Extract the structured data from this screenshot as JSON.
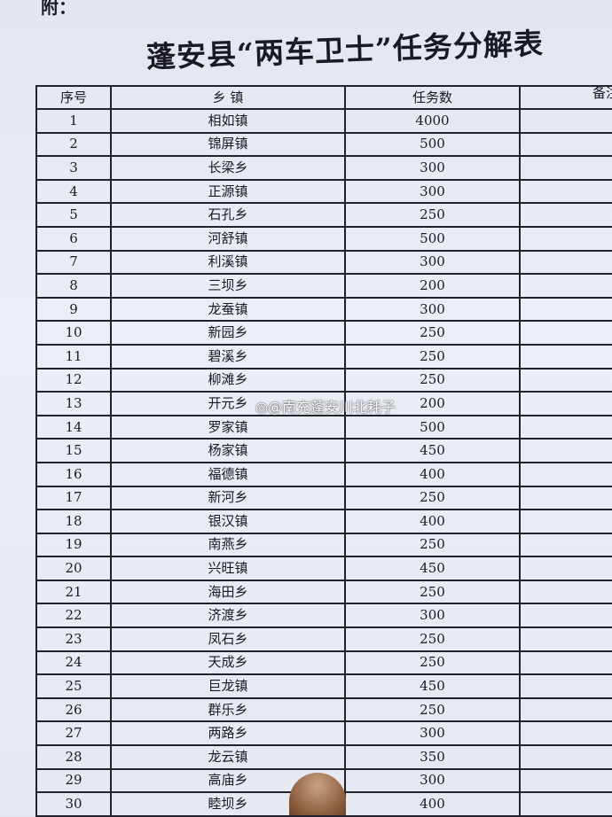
{
  "attachment_label": "附：",
  "title": "蓬安县“两车卫士”任务分解表",
  "headers": {
    "index": "序号",
    "town": "乡 镇",
    "tasks": "任务数",
    "remarks": "备注"
  },
  "rows": [
    {
      "index": "1",
      "town": "相如镇",
      "tasks": "4000"
    },
    {
      "index": "2",
      "town": "锦屏镇",
      "tasks": "500"
    },
    {
      "index": "3",
      "town": "长梁乡",
      "tasks": "300"
    },
    {
      "index": "4",
      "town": "正源镇",
      "tasks": "300"
    },
    {
      "index": "5",
      "town": "石孔乡",
      "tasks": "250"
    },
    {
      "index": "6",
      "town": "河舒镇",
      "tasks": "500"
    },
    {
      "index": "7",
      "town": "利溪镇",
      "tasks": "300"
    },
    {
      "index": "8",
      "town": "三坝乡",
      "tasks": "200"
    },
    {
      "index": "9",
      "town": "龙蚕镇",
      "tasks": "300"
    },
    {
      "index": "10",
      "town": "新园乡",
      "tasks": "250"
    },
    {
      "index": "11",
      "town": "碧溪乡",
      "tasks": "250"
    },
    {
      "index": "12",
      "town": "柳滩乡",
      "tasks": "250"
    },
    {
      "index": "13",
      "town": "开元乡",
      "tasks": "200"
    },
    {
      "index": "14",
      "town": "罗家镇",
      "tasks": "500"
    },
    {
      "index": "15",
      "town": "杨家镇",
      "tasks": "450"
    },
    {
      "index": "16",
      "town": "福德镇",
      "tasks": "400"
    },
    {
      "index": "17",
      "town": "新河乡",
      "tasks": "250"
    },
    {
      "index": "18",
      "town": "银汉镇",
      "tasks": "400"
    },
    {
      "index": "19",
      "town": "南燕乡",
      "tasks": "250"
    },
    {
      "index": "20",
      "town": "兴旺镇",
      "tasks": "450"
    },
    {
      "index": "21",
      "town": "海田乡",
      "tasks": "250"
    },
    {
      "index": "22",
      "town": "济渡乡",
      "tasks": "300"
    },
    {
      "index": "23",
      "town": "凤石乡",
      "tasks": "250"
    },
    {
      "index": "24",
      "town": "天成乡",
      "tasks": "250"
    },
    {
      "index": "25",
      "town": "巨龙镇",
      "tasks": "450"
    },
    {
      "index": "26",
      "town": "群乐乡",
      "tasks": "250"
    },
    {
      "index": "27",
      "town": "两路乡",
      "tasks": "300"
    },
    {
      "index": "28",
      "town": "龙云镇",
      "tasks": "350"
    },
    {
      "index": "29",
      "town": "高庙乡",
      "tasks": "300"
    },
    {
      "index": "30",
      "town": "睦坝乡",
      "tasks": "400"
    }
  ],
  "watermark": "@南充蓬安川北耗子"
}
